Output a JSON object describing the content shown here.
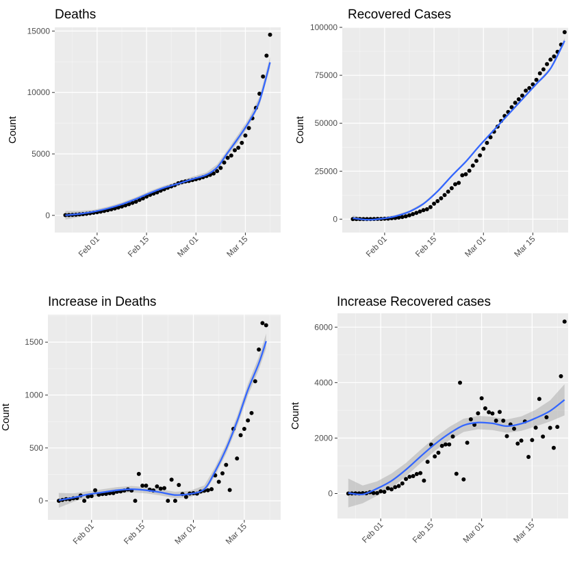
{
  "chart_data": [
    {
      "type": "scatter",
      "title": "Deaths",
      "xlabel": "",
      "ylabel": "Count",
      "xlim": [
        -3,
        61
      ],
      "ylim": [
        -1400,
        15300
      ],
      "yticks": [
        0,
        5000,
        10000,
        15000
      ],
      "xticks": [
        {
          "t": 9,
          "label": "Feb 01"
        },
        {
          "t": 23,
          "label": "Feb 15"
        },
        {
          "t": 37,
          "label": "Mar 01"
        },
        {
          "t": 51,
          "label": "Mar 15"
        }
      ],
      "points": [
        [
          0,
          17
        ],
        [
          1,
          25
        ],
        [
          2,
          41
        ],
        [
          3,
          56
        ],
        [
          4,
          80
        ],
        [
          5,
          106
        ],
        [
          6,
          132
        ],
        [
          7,
          170
        ],
        [
          8,
          213
        ],
        [
          9,
          259
        ],
        [
          10,
          304
        ],
        [
          11,
          362
        ],
        [
          12,
          426
        ],
        [
          13,
          492
        ],
        [
          14,
          565
        ],
        [
          15,
          638
        ],
        [
          16,
          724
        ],
        [
          17,
          813
        ],
        [
          18,
          910
        ],
        [
          19,
          1018
        ],
        [
          20,
          1115
        ],
        [
          21,
          1261
        ],
        [
          22,
          1383
        ],
        [
          23,
          1526
        ],
        [
          24,
          1669
        ],
        [
          25,
          1775
        ],
        [
          26,
          1873
        ],
        [
          27,
          2009
        ],
        [
          28,
          2126
        ],
        [
          29,
          2247
        ],
        [
          30,
          2360
        ],
        [
          31,
          2460
        ],
        [
          32,
          2618
        ],
        [
          33,
          2699
        ],
        [
          34,
          2763
        ],
        [
          35,
          2800
        ],
        [
          36,
          2869
        ],
        [
          37,
          2941
        ],
        [
          38,
          3009
        ],
        [
          39,
          3105
        ],
        [
          40,
          3200
        ],
        [
          41,
          3300
        ],
        [
          42,
          3410
        ],
        [
          43,
          3600
        ],
        [
          44,
          3860
        ],
        [
          45,
          4300
        ],
        [
          46,
          4680
        ],
        [
          47,
          4870
        ],
        [
          48,
          5300
        ],
        [
          49,
          5500
        ],
        [
          50,
          5900
        ],
        [
          51,
          6500
        ],
        [
          52,
          7100
        ],
        [
          53,
          7900
        ],
        [
          54,
          8750
        ],
        [
          55,
          9900
        ],
        [
          56,
          11300
        ],
        [
          57,
          13000
        ],
        [
          58,
          14700
        ]
      ],
      "smooth": [
        [
          0,
          10
        ],
        [
          4,
          120
        ],
        [
          8,
          300
        ],
        [
          12,
          560
        ],
        [
          16,
          900
        ],
        [
          20,
          1330
        ],
        [
          24,
          1820
        ],
        [
          28,
          2250
        ],
        [
          32,
          2580
        ],
        [
          36,
          2950
        ],
        [
          40,
          3300
        ],
        [
          43,
          3900
        ],
        [
          46,
          5100
        ],
        [
          49,
          6300
        ],
        [
          52,
          7600
        ],
        [
          55,
          9300
        ],
        [
          58,
          12450
        ]
      ],
      "band_halfwidth": [
        350,
        250,
        150,
        150,
        150,
        150,
        170,
        170,
        170,
        200,
        200,
        250,
        250,
        300,
        300,
        350,
        450
      ]
    },
    {
      "type": "scatter",
      "title": "Recovered Cases",
      "xlabel": "",
      "ylabel": "Count",
      "xlim": [
        -3,
        61
      ],
      "ylim": [
        -7000,
        100000
      ],
      "yticks": [
        0,
        25000,
        50000,
        75000,
        100000
      ],
      "xticks": [
        {
          "t": 9,
          "label": "Feb 01"
        },
        {
          "t": 23,
          "label": "Feb 15"
        },
        {
          "t": 37,
          "label": "Mar 01"
        },
        {
          "t": 51,
          "label": "Mar 15"
        }
      ],
      "points": [
        [
          0,
          28
        ],
        [
          1,
          30
        ],
        [
          2,
          36
        ],
        [
          3,
          39
        ],
        [
          4,
          52
        ],
        [
          5,
          61
        ],
        [
          6,
          107
        ],
        [
          7,
          126
        ],
        [
          8,
          143
        ],
        [
          9,
          222
        ],
        [
          10,
          284
        ],
        [
          11,
          472
        ],
        [
          12,
          623
        ],
        [
          13,
          852
        ],
        [
          14,
          1124
        ],
        [
          15,
          1487
        ],
        [
          16,
          2011
        ],
        [
          17,
          2616
        ],
        [
          18,
          3244
        ],
        [
          19,
          3946
        ],
        [
          20,
          4683
        ],
        [
          21,
          5150
        ],
        [
          22,
          6295
        ],
        [
          23,
          8058
        ],
        [
          24,
          9395
        ],
        [
          25,
          10865
        ],
        [
          26,
          12583
        ],
        [
          27,
          14352
        ],
        [
          28,
          16121
        ],
        [
          29,
          18177
        ],
        [
          30,
          18890
        ],
        [
          31,
          22886
        ],
        [
          32,
          23394
        ],
        [
          33,
          25227
        ],
        [
          34,
          27905
        ],
        [
          35,
          30384
        ],
        [
          36,
          33277
        ],
        [
          37,
          36711
        ],
        [
          38,
          39782
        ],
        [
          39,
          42716
        ],
        [
          40,
          45602
        ],
        [
          41,
          48228
        ],
        [
          42,
          51170
        ],
        [
          43,
          53796
        ],
        [
          44,
          55865
        ],
        [
          45,
          58358
        ],
        [
          46,
          60694
        ],
        [
          47,
          62494
        ],
        [
          48,
          64404
        ],
        [
          49,
          67003
        ],
        [
          50,
          68324
        ],
        [
          51,
          70251
        ],
        [
          52,
          72624
        ],
        [
          53,
          76034
        ],
        [
          54,
          78088
        ],
        [
          55,
          80840
        ],
        [
          56,
          83207
        ],
        [
          57,
          84854
        ],
        [
          58,
          87256
        ],
        [
          59,
          91000
        ],
        [
          60,
          97500
        ]
      ],
      "smooth": [
        [
          0,
          500
        ],
        [
          4,
          -300
        ],
        [
          8,
          200
        ],
        [
          12,
          1500
        ],
        [
          16,
          3900
        ],
        [
          20,
          8000
        ],
        [
          24,
          14500
        ],
        [
          28,
          22500
        ],
        [
          32,
          30000
        ],
        [
          36,
          38500
        ],
        [
          40,
          46500
        ],
        [
          44,
          54500
        ],
        [
          48,
          62500
        ],
        [
          52,
          70500
        ],
        [
          56,
          78500
        ],
        [
          60,
          93000
        ]
      ],
      "band_halfwidth": [
        1400,
        700,
        600,
        600,
        600,
        600,
        600,
        600,
        600,
        600,
        600,
        600,
        600,
        600,
        700,
        1400
      ]
    },
    {
      "type": "scatter",
      "title": "Increase in Deaths",
      "xlabel": "",
      "ylabel": "Count",
      "xlim": [
        -3,
        61
      ],
      "ylim": [
        -180,
        1760
      ],
      "yticks": [
        0,
        500,
        1000,
        1500
      ],
      "xticks": [
        {
          "t": 9,
          "label": "Feb 01"
        },
        {
          "t": 23,
          "label": "Feb 15"
        },
        {
          "t": 37,
          "label": "Mar 01"
        },
        {
          "t": 51,
          "label": "Mar 15"
        }
      ],
      "points": [
        [
          0,
          0
        ],
        [
          1,
          8
        ],
        [
          2,
          16
        ],
        [
          3,
          15
        ],
        [
          4,
          24
        ],
        [
          5,
          26
        ],
        [
          6,
          50
        ],
        [
          7,
          0
        ],
        [
          8,
          40
        ],
        [
          9,
          45
        ],
        [
          10,
          100
        ],
        [
          11,
          58
        ],
        [
          12,
          64
        ],
        [
          13,
          66
        ],
        [
          14,
          72
        ],
        [
          15,
          73
        ],
        [
          16,
          86
        ],
        [
          17,
          89
        ],
        [
          18,
          97
        ],
        [
          19,
          108
        ],
        [
          20,
          97
        ],
        [
          21,
          0
        ],
        [
          22,
          254
        ],
        [
          23,
          143
        ],
        [
          24,
          143
        ],
        [
          25,
          105
        ],
        [
          26,
          98
        ],
        [
          27,
          136
        ],
        [
          28,
          115
        ],
        [
          29,
          120
        ],
        [
          30,
          0
        ],
        [
          31,
          200
        ],
        [
          32,
          0
        ],
        [
          33,
          150
        ],
        [
          34,
          64
        ],
        [
          35,
          37
        ],
        [
          36,
          69
        ],
        [
          37,
          72
        ],
        [
          38,
          68
        ],
        [
          39,
          88
        ],
        [
          40,
          96
        ],
        [
          41,
          100
        ],
        [
          42,
          110
        ],
        [
          43,
          240
        ],
        [
          44,
          180
        ],
        [
          45,
          260
        ],
        [
          46,
          340
        ],
        [
          47,
          102
        ],
        [
          48,
          680
        ],
        [
          49,
          400
        ],
        [
          50,
          620
        ],
        [
          51,
          680
        ],
        [
          52,
          760
        ],
        [
          53,
          830
        ],
        [
          54,
          1130
        ],
        [
          55,
          1430
        ],
        [
          56,
          1680
        ],
        [
          57,
          1660
        ]
      ],
      "smooth": [
        [
          0,
          5
        ],
        [
          4,
          30
        ],
        [
          8,
          60
        ],
        [
          12,
          80
        ],
        [
          16,
          100
        ],
        [
          20,
          110
        ],
        [
          24,
          100
        ],
        [
          28,
          80
        ],
        [
          32,
          55
        ],
        [
          36,
          65
        ],
        [
          40,
          110
        ],
        [
          43,
          280
        ],
        [
          46,
          490
        ],
        [
          49,
          750
        ],
        [
          52,
          1050
        ],
        [
          55,
          1300
        ],
        [
          57,
          1510
        ]
      ],
      "band_halfwidth": [
        70,
        40,
        30,
        30,
        30,
        30,
        30,
        30,
        30,
        30,
        35,
        40,
        45,
        50,
        55,
        60,
        70
      ]
    },
    {
      "type": "scatter",
      "title": "Increase Recovered cases",
      "xlabel": "",
      "ylabel": "Count",
      "xlim": [
        -3,
        61
      ],
      "ylim": [
        -900,
        6500
      ],
      "yticks": [
        0,
        2000,
        4000,
        6000
      ],
      "xticks": [
        {
          "t": 9,
          "label": "Feb 01"
        },
        {
          "t": 23,
          "label": "Feb 15"
        },
        {
          "t": 37,
          "label": "Mar 01"
        },
        {
          "t": 51,
          "label": "Mar 15"
        }
      ],
      "points": [
        [
          0,
          0
        ],
        [
          1,
          2
        ],
        [
          2,
          6
        ],
        [
          3,
          3
        ],
        [
          4,
          13
        ],
        [
          5,
          9
        ],
        [
          6,
          46
        ],
        [
          7,
          19
        ],
        [
          8,
          17
        ],
        [
          9,
          79
        ],
        [
          10,
          62
        ],
        [
          11,
          188
        ],
        [
          12,
          151
        ],
        [
          13,
          229
        ],
        [
          14,
          272
        ],
        [
          15,
          363
        ],
        [
          16,
          524
        ],
        [
          17,
          605
        ],
        [
          18,
          628
        ],
        [
          19,
          702
        ],
        [
          20,
          737
        ],
        [
          21,
          467
        ],
        [
          22,
          1145
        ],
        [
          23,
          1763
        ],
        [
          24,
          1337
        ],
        [
          25,
          1470
        ],
        [
          26,
          1718
        ],
        [
          27,
          1769
        ],
        [
          28,
          1769
        ],
        [
          29,
          2056
        ],
        [
          30,
          713
        ],
        [
          31,
          3996
        ],
        [
          32,
          508
        ],
        [
          33,
          1833
        ],
        [
          34,
          2678
        ],
        [
          35,
          2479
        ],
        [
          36,
          2893
        ],
        [
          37,
          3434
        ],
        [
          38,
          3071
        ],
        [
          39,
          2934
        ],
        [
          40,
          2886
        ],
        [
          41,
          2626
        ],
        [
          42,
          2942
        ],
        [
          43,
          2626
        ],
        [
          44,
          2069
        ],
        [
          45,
          2493
        ],
        [
          46,
          2336
        ],
        [
          47,
          1800
        ],
        [
          48,
          1910
        ],
        [
          49,
          2599
        ],
        [
          50,
          1321
        ],
        [
          51,
          1927
        ],
        [
          52,
          2373
        ],
        [
          53,
          3410
        ],
        [
          54,
          2054
        ],
        [
          55,
          2752
        ],
        [
          56,
          2367
        ],
        [
          57,
          1647
        ],
        [
          58,
          2402
        ],
        [
          59,
          4230
        ],
        [
          60,
          6200
        ]
      ],
      "smooth": [
        [
          0,
          20
        ],
        [
          4,
          -30
        ],
        [
          8,
          180
        ],
        [
          12,
          460
        ],
        [
          16,
          860
        ],
        [
          20,
          1330
        ],
        [
          24,
          1780
        ],
        [
          28,
          2160
        ],
        [
          32,
          2460
        ],
        [
          36,
          2560
        ],
        [
          40,
          2530
        ],
        [
          44,
          2430
        ],
        [
          48,
          2520
        ],
        [
          52,
          2720
        ],
        [
          56,
          2980
        ],
        [
          60,
          3380
        ]
      ],
      "band_halfwidth": [
        520,
        320,
        260,
        260,
        240,
        240,
        240,
        240,
        240,
        240,
        240,
        240,
        260,
        300,
        380,
        560
      ]
    }
  ]
}
